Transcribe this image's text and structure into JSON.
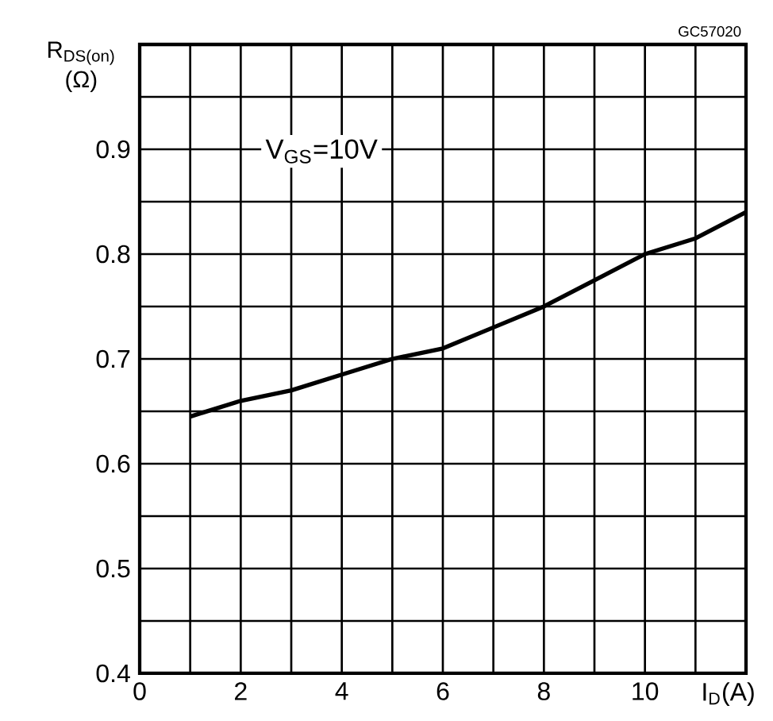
{
  "chart_data": {
    "type": "line",
    "xlabel": "I$_{D}$(A)",
    "ylabel": "R$_{DS(on)}$ (Ω)",
    "annotations": [
      "V$_{GS}$=10V",
      "GC57020"
    ],
    "x": [
      1,
      2,
      3,
      4,
      5,
      6,
      7,
      8,
      9,
      10,
      11,
      12
    ],
    "series": [
      {
        "color": "#000000",
        "values": [
          0.645,
          0.66,
          0.67,
          0.685,
          0.7,
          0.71,
          0.73,
          0.75,
          0.775,
          0.8,
          0.815,
          0.84
        ]
      }
    ],
    "xlim": [
      0,
      12
    ],
    "ylim": [
      0.4,
      1.0
    ],
    "xticks": [
      0,
      {
        "value": 1,
        "label": null
      },
      2,
      {
        "value": 3,
        "label": null
      },
      4,
      {
        "value": 5,
        "label": null
      },
      6,
      {
        "value": 7,
        "label": null
      },
      8,
      {
        "value": 9,
        "label": null
      },
      10,
      {
        "value": 11,
        "label": null
      },
      {
        "value": 12,
        "label": null
      }
    ],
    "yticks": [
      0.4,
      {
        "value": 0.45,
        "label": null
      },
      0.5,
      {
        "value": 0.55,
        "label": null
      },
      0.6,
      {
        "value": 0.65,
        "label": null
      },
      0.7,
      {
        "value": 0.75,
        "label": null
      },
      0.8,
      {
        "value": 0.85,
        "label": null
      },
      0.9,
      {
        "value": 0.95,
        "label": null
      },
      {
        "value": 1.0,
        "label": null
      }
    ],
    "grid": true,
    "marker": "none",
    "line_style": "solid"
  }
}
